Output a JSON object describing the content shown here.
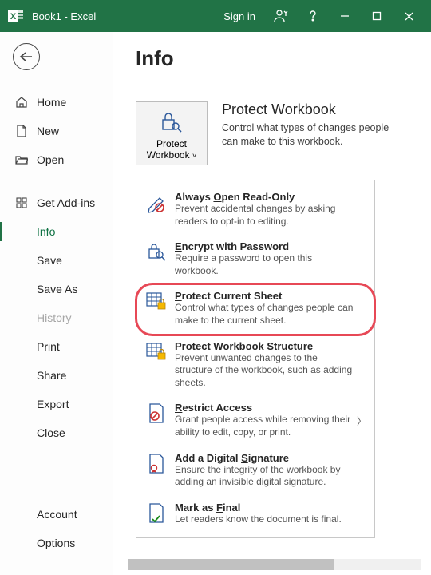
{
  "colors": {
    "brand": "#217346",
    "highlight": "#e74856",
    "text": "#262626",
    "muted": "#a6a6a6"
  },
  "titlebar": {
    "document_name": "Book1",
    "app_name": "Excel",
    "full_title": "Book1  -  Excel",
    "signin_label": "Sign in"
  },
  "sidebar": {
    "items": [
      {
        "key": "home",
        "label": "Home"
      },
      {
        "key": "new",
        "label": "New"
      },
      {
        "key": "open",
        "label": "Open"
      }
    ],
    "items2": [
      {
        "key": "addins",
        "label": "Get Add-ins"
      },
      {
        "key": "info",
        "label": "Info",
        "active": true
      },
      {
        "key": "save",
        "label": "Save"
      },
      {
        "key": "saveas",
        "label": "Save As"
      },
      {
        "key": "history",
        "label": "History",
        "disabled": true
      },
      {
        "key": "print",
        "label": "Print"
      },
      {
        "key": "share",
        "label": "Share"
      },
      {
        "key": "export",
        "label": "Export"
      },
      {
        "key": "close",
        "label": "Close"
      }
    ],
    "bottom": [
      {
        "key": "account",
        "label": "Account"
      },
      {
        "key": "options",
        "label": "Options"
      }
    ]
  },
  "page": {
    "title": "Info",
    "protect_button": {
      "line1": "Protect",
      "line2": "Workbook"
    },
    "protect_section": {
      "heading": "Protect Workbook",
      "description": "Control what types of changes people can make to this workbook."
    }
  },
  "menu": [
    {
      "key": "readonly",
      "title_pre": "Always ",
      "title_ul": "O",
      "title_post": "pen Read-Only",
      "desc": "Prevent accidental changes by asking readers to opt-in to editing."
    },
    {
      "key": "encrypt",
      "title_pre": "",
      "title_ul": "E",
      "title_post": "ncrypt with Password",
      "desc": "Require a password to open this workbook."
    },
    {
      "key": "protect-sheet",
      "title_pre": "",
      "title_ul": "P",
      "title_post": "rotect Current Sheet",
      "desc": "Control what types of changes people can make to the current sheet.",
      "highlight": true
    },
    {
      "key": "protect-structure",
      "title_pre": "Protect ",
      "title_ul": "W",
      "title_post": "orkbook Structure",
      "desc": "Prevent unwanted changes to the structure of the workbook, such as adding sheets."
    },
    {
      "key": "restrict",
      "title_pre": "",
      "title_ul": "R",
      "title_post": "estrict Access",
      "desc": "Grant people access while removing their ability to edit, copy, or print.",
      "chevron": true
    },
    {
      "key": "signature",
      "title_pre": "Add a Digital ",
      "title_ul": "S",
      "title_post": "ignature",
      "desc": "Ensure the integrity of the workbook by adding an invisible digital signature."
    },
    {
      "key": "final",
      "title_pre": "Mark as ",
      "title_ul": "F",
      "title_post": "inal",
      "desc": "Let readers know the document is final."
    }
  ]
}
